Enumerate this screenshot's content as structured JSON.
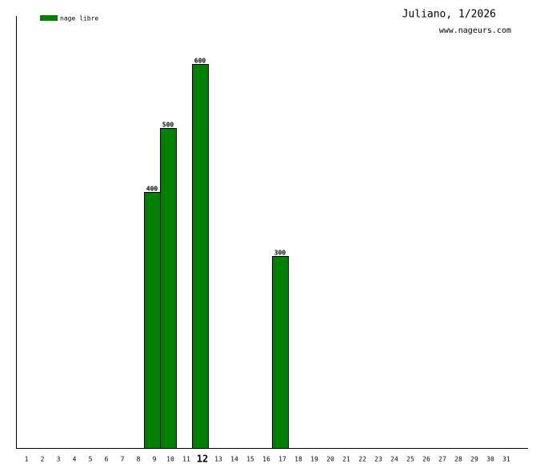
{
  "chart_data": {
    "type": "bar",
    "title": "Juliano, 1/2026",
    "subtitle": "www.nageurs.com",
    "categories": [
      "1",
      "2",
      "3",
      "4",
      "5",
      "6",
      "7",
      "8",
      "9",
      "10",
      "11",
      "12",
      "13",
      "14",
      "15",
      "16",
      "17",
      "18",
      "19",
      "20",
      "21",
      "22",
      "23",
      "24",
      "25",
      "26",
      "27",
      "28",
      "29",
      "30",
      "31"
    ],
    "series": [
      {
        "name": "nage libre",
        "color": "#008000",
        "values": [
          null,
          null,
          null,
          null,
          null,
          null,
          null,
          null,
          400,
          500,
          null,
          600,
          null,
          null,
          null,
          null,
          300,
          null,
          null,
          null,
          null,
          null,
          null,
          null,
          null,
          null,
          null,
          null,
          null,
          null,
          null
        ]
      }
    ],
    "ylim": [
      0,
      675
    ],
    "highlight_index": 11
  }
}
